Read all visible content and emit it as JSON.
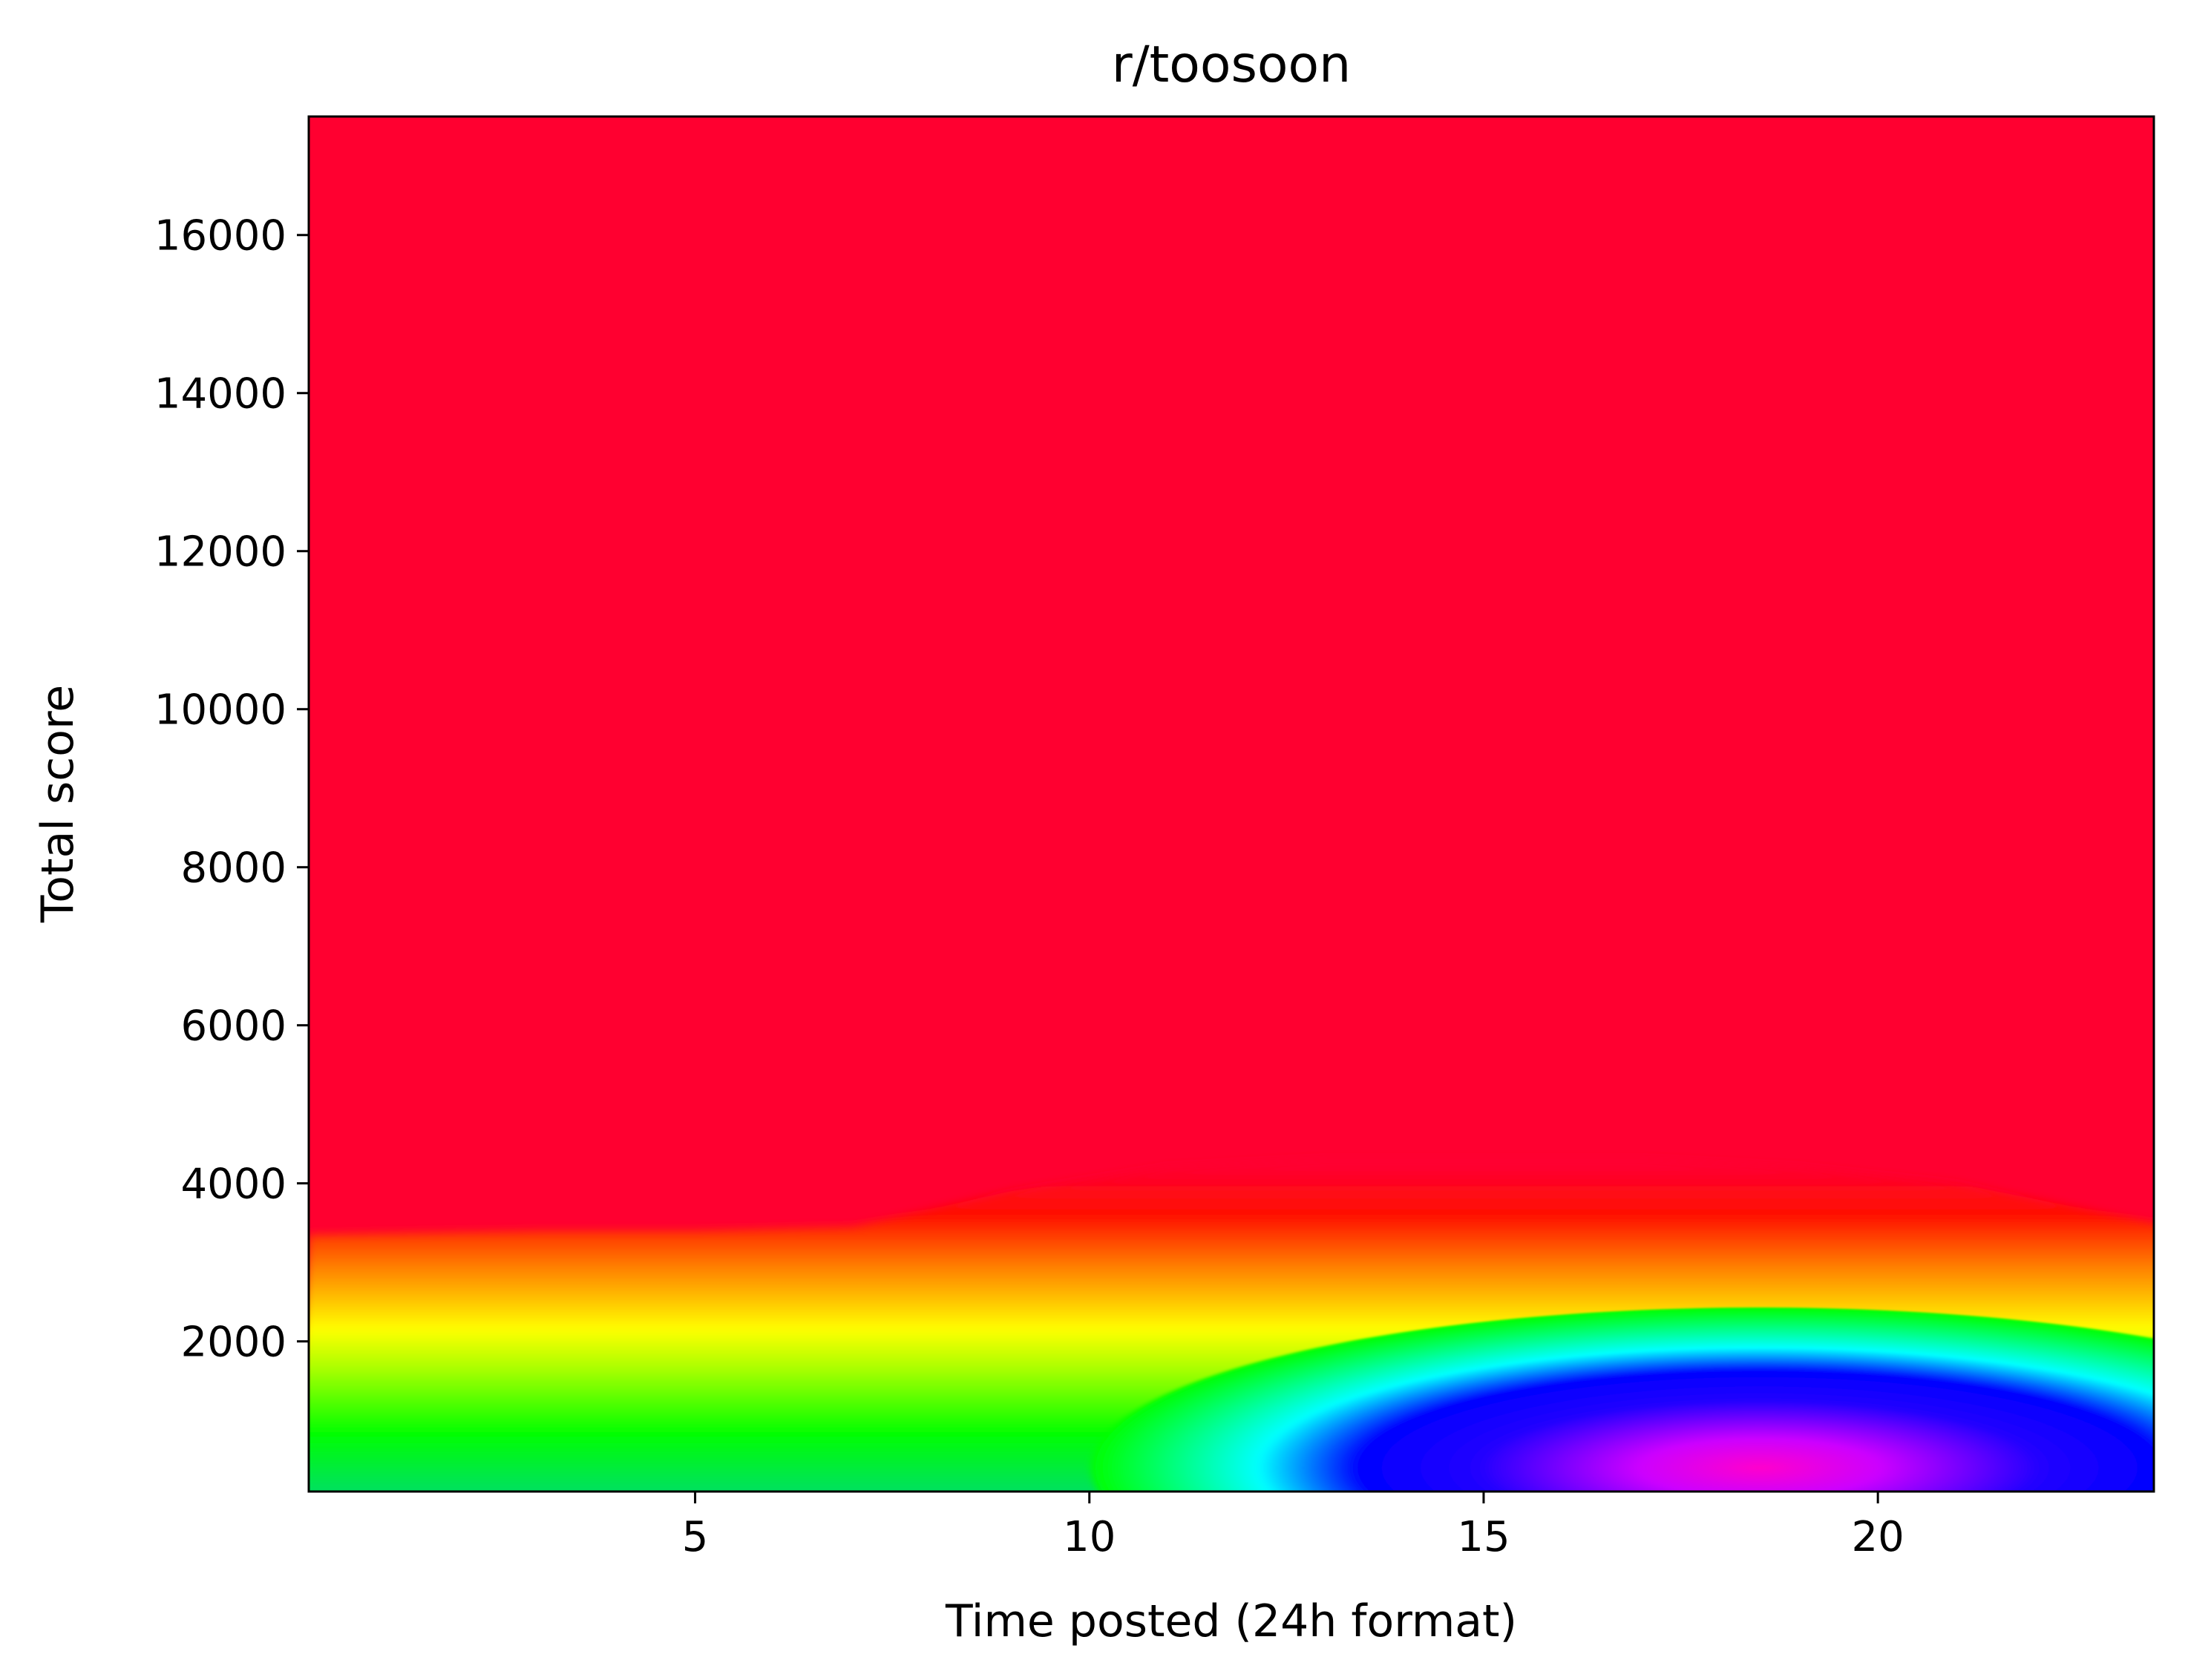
{
  "chart_data": {
    "type": "heatmap",
    "title": "r/toosoon",
    "xlabel": "Time posted (24h format)",
    "ylabel": "Total score",
    "xlim": [
      0.1,
      23.5
    ],
    "ylim": [
      100,
      17500
    ],
    "xticks": [
      5,
      10,
      15,
      20
    ],
    "yticks": [
      2000,
      4000,
      6000,
      8000,
      10000,
      12000,
      14000,
      16000
    ],
    "xtick_labels": [
      "5",
      "10",
      "15",
      "20"
    ],
    "ytick_labels": [
      "2000",
      "4000",
      "6000",
      "8000",
      "10000",
      "12000",
      "14000",
      "16000"
    ],
    "colormap": "hsv",
    "grid": false,
    "legend": null,
    "description_of_field": "smooth density surface; low values (red) over most of the plane, green band below ~1500 score across all hours, minimum (magenta) around hour 18-19 at score ~400",
    "boundaries": {
      "hours": [
        0.1,
        3,
        5,
        7,
        9,
        11,
        13,
        15,
        17,
        19,
        21,
        23.5
      ],
      "yellow_contour_score": [
        1750,
        1800,
        1800,
        1850,
        2300,
        2600,
        2700,
        2700,
        2700,
        2600,
        2400,
        1900
      ],
      "cyan_contour_score": [
        0,
        0,
        0,
        0,
        0,
        350,
        1150,
        1500,
        1550,
        1500,
        1300,
        750
      ]
    },
    "minimum": {
      "hour": 18.5,
      "score": 400
    }
  }
}
